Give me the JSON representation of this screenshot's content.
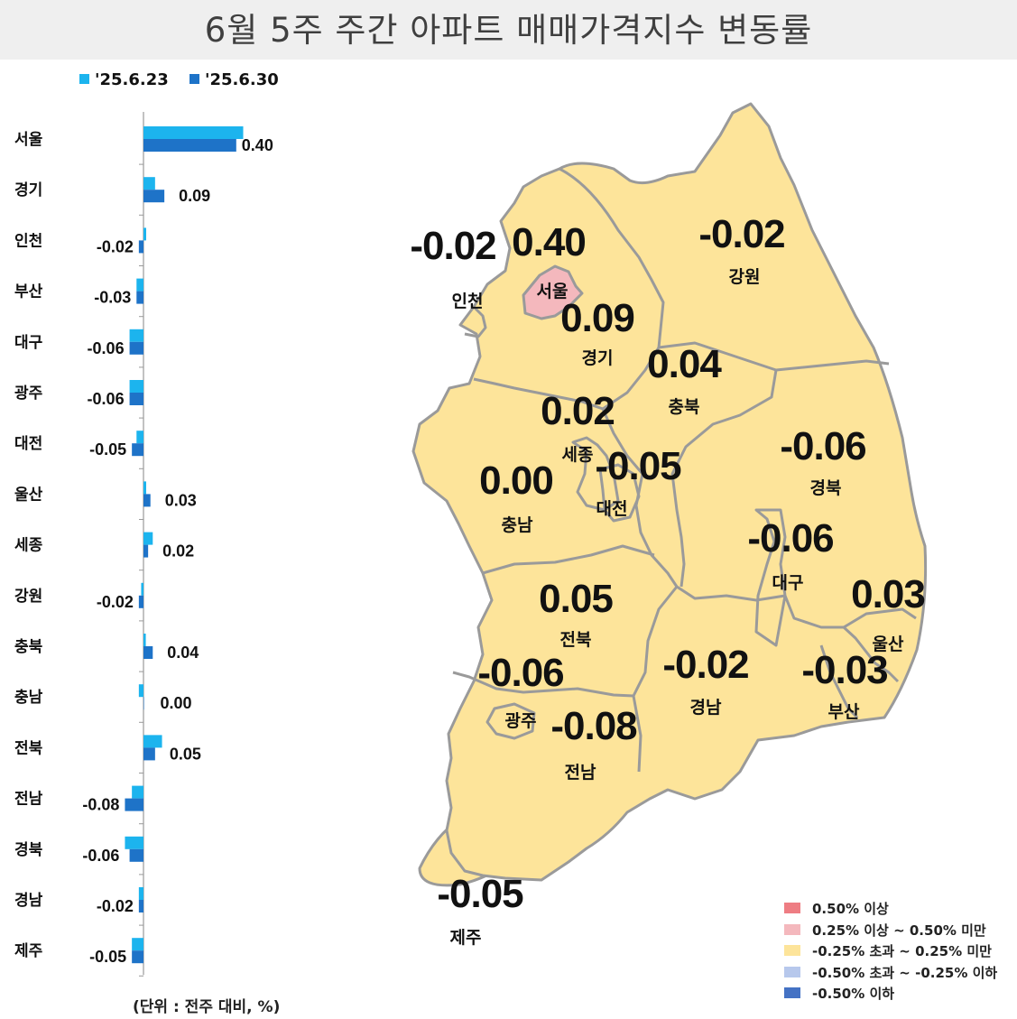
{
  "title": "6월 5주 주간 아파트 매매가격지수 변동률",
  "unit_note": "(단위 : 전주 대비, %)",
  "colors": {
    "series_prev": "#1cb4ee",
    "series_curr": "#1e73c8",
    "map_fill": "#fde49a",
    "map_border": "#9a9a9a",
    "seoul_fill": "#f4b8bd"
  },
  "chart_data": {
    "type": "bar",
    "orientation": "horizontal",
    "categories": [
      "서울",
      "경기",
      "인천",
      "부산",
      "대구",
      "광주",
      "대전",
      "울산",
      "세종",
      "강원",
      "충북",
      "충남",
      "전북",
      "전남",
      "경북",
      "경남",
      "제주"
    ],
    "series": [
      {
        "name": "'25.6.23",
        "values": [
          0.43,
          0.05,
          0.0,
          -0.03,
          -0.06,
          -0.06,
          -0.03,
          0.0,
          0.04,
          -0.01,
          0.01,
          -0.02,
          0.08,
          -0.05,
          -0.08,
          -0.02,
          -0.05
        ]
      },
      {
        "name": "'25.6.30",
        "values": [
          0.4,
          0.09,
          -0.02,
          -0.03,
          -0.06,
          -0.06,
          -0.05,
          0.03,
          0.02,
          -0.02,
          0.04,
          0.0,
          0.05,
          -0.08,
          -0.06,
          -0.02,
          -0.05
        ]
      }
    ],
    "data_labels": [
      "0.40",
      "0.09",
      "-0.02",
      "-0.03",
      "-0.06",
      "-0.06",
      "-0.05",
      "0.03",
      "0.02",
      "-0.02",
      "0.04",
      "0.00",
      "0.05",
      "-0.08",
      "-0.06",
      "-0.02",
      "-0.05"
    ]
  },
  "map": {
    "regions": [
      {
        "name": "인천",
        "value": "-0.02"
      },
      {
        "name": "서울",
        "value": "0.40"
      },
      {
        "name": "강원",
        "value": "-0.02"
      },
      {
        "name": "경기",
        "value": "0.09"
      },
      {
        "name": "충북",
        "value": "0.04"
      },
      {
        "name": "세종",
        "value": "0.02"
      },
      {
        "name": "경북",
        "value": "-0.06"
      },
      {
        "name": "대전",
        "value": "-0.05"
      },
      {
        "name": "충남",
        "value": "0.00"
      },
      {
        "name": "대구",
        "value": "-0.06"
      },
      {
        "name": "울산",
        "value": "0.03"
      },
      {
        "name": "전북",
        "value": "0.05"
      },
      {
        "name": "광주",
        "value": "-0.06"
      },
      {
        "name": "경남",
        "value": "-0.02"
      },
      {
        "name": "부산",
        "value": "-0.03"
      },
      {
        "name": "전남",
        "value": "-0.08"
      },
      {
        "name": "제주",
        "value": "-0.05"
      }
    ]
  },
  "map_legend": [
    {
      "label": "0.50% 이상",
      "color": "#ee7d83"
    },
    {
      "label": "0.25% 이상 ~ 0.50% 미만",
      "color": "#f4b8bd"
    },
    {
      "label": "-0.25% 초과 ~ 0.25% 미만",
      "color": "#fde49a"
    },
    {
      "label": "-0.50% 초과 ~ -0.25% 이하",
      "color": "#b7c8ec"
    },
    {
      "label": "-0.50% 이하",
      "color": "#4472c4"
    }
  ]
}
